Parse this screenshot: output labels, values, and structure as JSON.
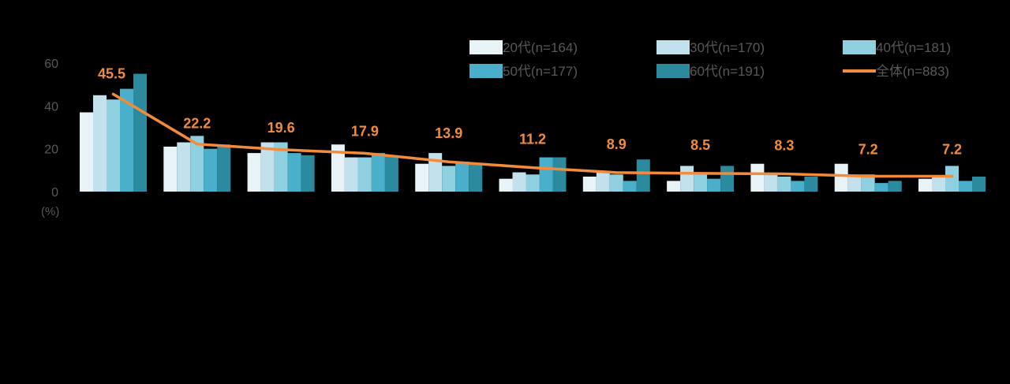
{
  "chart_data": {
    "type": "bar",
    "unit_label": "(%)",
    "ylim": [
      0,
      60
    ],
    "yticks": [
      0,
      20,
      40,
      60
    ],
    "grid": false,
    "legend_position": "top-right",
    "categories": [
      "",
      "",
      "",
      "",
      "",
      "",
      "",
      "",
      "",
      "",
      ""
    ],
    "series": [
      {
        "name": "20代(n=164)",
        "color": "#e8f3f7",
        "values": [
          37,
          21,
          18,
          22,
          13,
          6,
          7,
          5,
          13,
          13,
          6
        ]
      },
      {
        "name": "30代(n=170)",
        "color": "#c2e1ec",
        "values": [
          45,
          23,
          23,
          16,
          18,
          9,
          9,
          12,
          8,
          8,
          7
        ]
      },
      {
        "name": "40代(n=181)",
        "color": "#8ecfe0",
        "values": [
          43,
          26,
          23,
          16,
          12,
          8,
          8,
          9,
          7,
          8,
          12
        ]
      },
      {
        "name": "50代(n=177)",
        "color": "#49afca",
        "values": [
          48,
          20,
          18,
          18,
          14,
          16,
          5,
          6,
          5,
          4,
          5
        ]
      },
      {
        "name": "60代(n=191)",
        "color": "#2c8a9e",
        "values": [
          55,
          22,
          17,
          17,
          13,
          16,
          15,
          12,
          7,
          5,
          7
        ]
      }
    ],
    "line": {
      "name": "全体(n=883)",
      "color": "#f28c3c",
      "values": [
        45.5,
        22.2,
        19.6,
        17.9,
        13.9,
        11.2,
        8.9,
        8.5,
        8.3,
        7.2,
        7.2
      ],
      "labels": [
        "45.5",
        "22.2",
        "19.6",
        "17.9",
        "13.9",
        "11.2",
        "8.9",
        "8.5",
        "8.3",
        "7.2",
        "7.2"
      ]
    }
  }
}
